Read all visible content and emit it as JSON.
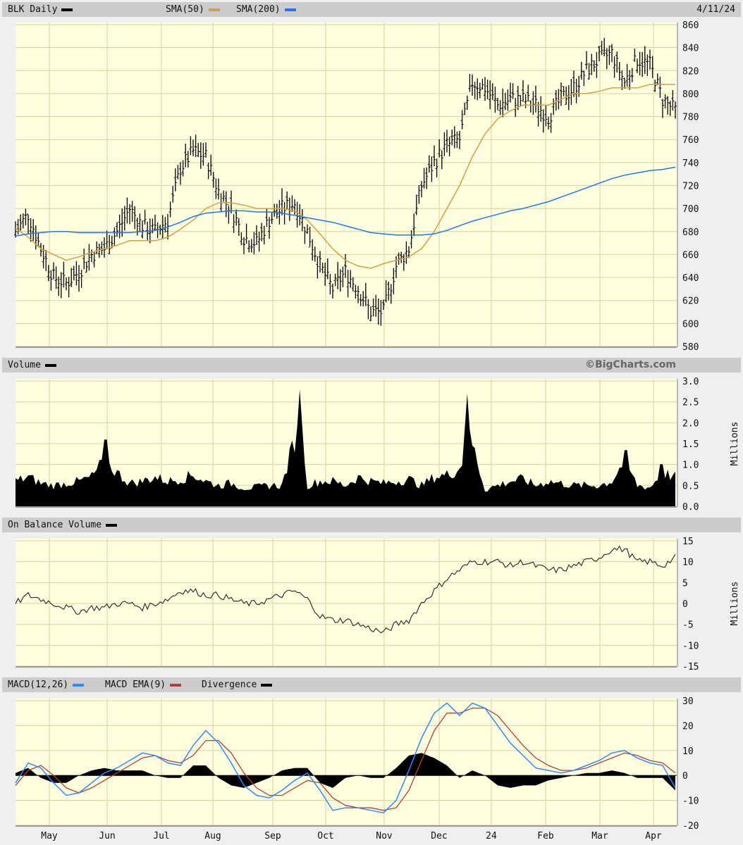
{
  "header": {
    "symbol_label": "BLK Daily",
    "sma50_label": "SMA(50)",
    "sma200_label": "SMA(200)",
    "date": "4/11/24"
  },
  "volume_header": {
    "label": "Volume",
    "watermark": "©BigCharts.com"
  },
  "obv_header": {
    "label": "On Balance Volume"
  },
  "macd_header": {
    "macd_label": "MACD(12,26)",
    "ema_label": "MACD EMA(9)",
    "div_label": "Divergence"
  },
  "colors": {
    "price": "#000000",
    "sma50": "#d4a040",
    "sma200": "#2277ee",
    "macd": "#3388ff",
    "ema": "#b04040",
    "divergence": "#000000",
    "plot_bg": "#ffffe0",
    "grid": "#d9d9a6"
  },
  "chart_data": [
    {
      "type": "line",
      "title": "BLK Daily",
      "x_unit": "weeks",
      "x_tick_labels": [
        "May",
        "Jun",
        "Jul",
        "Aug",
        "Sep",
        "Oct",
        "Nov",
        "Dec",
        "24",
        "Feb",
        "Mar",
        "Apr"
      ],
      "y_ticks": [
        580,
        600,
        620,
        640,
        660,
        680,
        700,
        720,
        740,
        760,
        780,
        800,
        820,
        840,
        860
      ],
      "ylim": [
        580,
        860
      ],
      "grid": true,
      "series": [
        {
          "name": "BLK Daily",
          "style": "ohlc-bars",
          "values": [
            680,
            695,
            665,
            640,
            635,
            645,
            660,
            665,
            680,
            700,
            685,
            680,
            690,
            735,
            750,
            745,
            715,
            700,
            675,
            670,
            690,
            700,
            705,
            680,
            650,
            630,
            645,
            630,
            610,
            610,
            650,
            665,
            720,
            740,
            755,
            760,
            810,
            805,
            790,
            795,
            795,
            790,
            780,
            795,
            805,
            820,
            830,
            835,
            810,
            830,
            825,
            795,
            785
          ]
        },
        {
          "name": "SMA(50)",
          "values": [
            683,
            675,
            665,
            660,
            655,
            658,
            662,
            665,
            668,
            672,
            672,
            672,
            675,
            682,
            690,
            700,
            705,
            705,
            703,
            700,
            700,
            700,
            698,
            690,
            678,
            665,
            655,
            650,
            648,
            652,
            655,
            658,
            665,
            680,
            700,
            720,
            745,
            765,
            778,
            785,
            790,
            790,
            790,
            795,
            800,
            800,
            802,
            805,
            805,
            805,
            808,
            808,
            808
          ]
        },
        {
          "name": "SMA(200)",
          "values": [
            676,
            678,
            679,
            680,
            680,
            679,
            679,
            679,
            679,
            679,
            680,
            681,
            684,
            688,
            693,
            696,
            697,
            698,
            698,
            697,
            697,
            696,
            694,
            692,
            690,
            688,
            685,
            682,
            679,
            678,
            677,
            677,
            677,
            678,
            681,
            685,
            689,
            692,
            695,
            698,
            700,
            703,
            706,
            710,
            714,
            718,
            722,
            726,
            729,
            731,
            733,
            734,
            736
          ]
        }
      ]
    },
    {
      "type": "area",
      "title": "Volume",
      "ylabel": "Millions",
      "y_ticks": [
        "0.0",
        "0.5",
        "1.0",
        "1.5",
        "2.0",
        "2.5",
        "3.0"
      ],
      "ylim": [
        0,
        3
      ],
      "values": [
        0.6,
        0.7,
        0.55,
        0.5,
        0.55,
        0.6,
        0.7,
        1.1,
        0.8,
        0.55,
        0.6,
        0.7,
        0.6,
        0.65,
        0.75,
        0.6,
        0.5,
        0.55,
        0.45,
        0.45,
        0.5,
        0.5,
        1.6,
        0.5,
        0.6,
        0.6,
        0.5,
        0.7,
        0.6,
        0.55,
        0.6,
        0.65,
        0.5,
        0.7,
        0.75,
        0.9,
        1.5,
        0.4,
        0.5,
        0.6,
        0.65,
        0.5,
        0.6,
        0.55,
        0.5,
        0.5,
        0.5,
        0.6,
        1.1,
        0.5,
        0.45,
        0.8,
        0.7
      ],
      "spikes": [
        {
          "week": 7.1,
          "value": 1.9
        },
        {
          "week": 22.4,
          "value": 2.8
        },
        {
          "week": 35.6,
          "value": 2.7
        },
        {
          "week": 48.1,
          "value": 1.6
        },
        {
          "week": 50.9,
          "value": 1.2
        }
      ]
    },
    {
      "type": "line",
      "title": "On Balance Volume",
      "ylabel": "Millions",
      "y_ticks": [
        "-15",
        "-10",
        "-5",
        "0",
        "5",
        "10",
        "15"
      ],
      "ylim": [
        -15,
        15
      ],
      "values": [
        0,
        2,
        1,
        0,
        -1,
        -2,
        -1,
        -1,
        0,
        0,
        -1,
        0,
        1,
        3,
        3,
        2,
        2,
        1,
        0,
        0,
        1,
        2,
        3,
        1,
        -3,
        -4,
        -4,
        -5,
        -6,
        -7,
        -5,
        -4,
        0,
        3,
        6,
        8,
        10,
        10,
        10,
        9,
        10,
        9,
        8,
        8,
        9,
        10,
        11,
        13,
        13,
        10,
        10,
        9,
        11
      ]
    },
    {
      "type": "line",
      "title": "MACD(12,26)",
      "y_ticks": [
        "-20",
        "-10",
        "0",
        "10",
        "20",
        "30"
      ],
      "ylim": [
        -20,
        30
      ],
      "series": [
        {
          "name": "MACD(12,26)",
          "values": [
            -3,
            5,
            3,
            -3,
            -8,
            -7,
            -3,
            1,
            3,
            6,
            9,
            8,
            5,
            4,
            12,
            18,
            13,
            5,
            -4,
            -8,
            -9,
            -6,
            -2,
            1,
            -6,
            -14,
            -13,
            -13,
            -14,
            -15,
            -10,
            2,
            15,
            25,
            29,
            24,
            29,
            27,
            20,
            13,
            8,
            3,
            2,
            1,
            2,
            4,
            6,
            9,
            10,
            7,
            5,
            4,
            -5
          ]
        },
        {
          "name": "MACD EMA(9)",
          "values": [
            -4,
            2,
            4,
            0,
            -5,
            -7,
            -5,
            -2,
            1,
            4,
            7,
            8,
            6,
            5,
            8,
            14,
            14,
            9,
            1,
            -5,
            -8,
            -8,
            -5,
            -2,
            -3,
            -9,
            -12,
            -13,
            -13,
            -14,
            -13,
            -6,
            6,
            18,
            25,
            25,
            27,
            27,
            24,
            18,
            12,
            7,
            4,
            2,
            2,
            3,
            5,
            7,
            9,
            8,
            6,
            5,
            1
          ]
        },
        {
          "name": "Divergence",
          "style": "area",
          "derived": "MACD minus EMA"
        }
      ]
    }
  ]
}
